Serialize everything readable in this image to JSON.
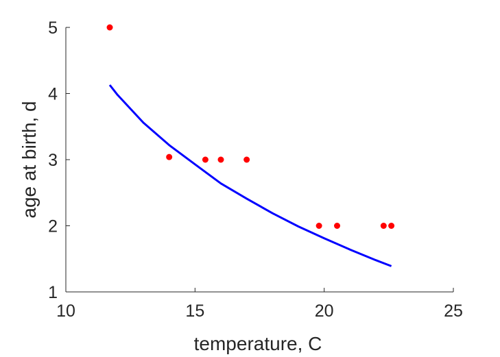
{
  "chart_data": {
    "type": "scatter",
    "title": "",
    "xlabel": "temperature, C",
    "ylabel": "age at birth, d",
    "xlim": [
      10,
      25
    ],
    "ylim": [
      1,
      5
    ],
    "xticks": [
      10,
      15,
      20,
      25
    ],
    "yticks": [
      1,
      2,
      3,
      4,
      5
    ],
    "grid": false,
    "box": "open-left-bottom",
    "series": [
      {
        "type": "scatter",
        "color": "#ff0000",
        "points": [
          {
            "x": 11.7,
            "y": 5.0
          },
          {
            "x": 14.0,
            "y": 3.04
          },
          {
            "x": 15.4,
            "y": 3.0
          },
          {
            "x": 16.0,
            "y": 3.0
          },
          {
            "x": 17.0,
            "y": 3.0
          },
          {
            "x": 19.8,
            "y": 2.0
          },
          {
            "x": 20.5,
            "y": 2.0
          },
          {
            "x": 22.3,
            "y": 2.0
          },
          {
            "x": 22.6,
            "y": 2.0
          }
        ]
      },
      {
        "type": "line",
        "color": "#0000ff",
        "points": [
          {
            "x": 11.7,
            "y": 4.13
          },
          {
            "x": 12.0,
            "y": 3.98
          },
          {
            "x": 13.0,
            "y": 3.56
          },
          {
            "x": 14.0,
            "y": 3.22
          },
          {
            "x": 15.0,
            "y": 2.93
          },
          {
            "x": 16.0,
            "y": 2.64
          },
          {
            "x": 17.0,
            "y": 2.41
          },
          {
            "x": 18.0,
            "y": 2.19
          },
          {
            "x": 19.0,
            "y": 1.99
          },
          {
            "x": 20.0,
            "y": 1.81
          },
          {
            "x": 21.0,
            "y": 1.64
          },
          {
            "x": 22.0,
            "y": 1.48
          },
          {
            "x": 22.6,
            "y": 1.39
          }
        ]
      }
    ]
  }
}
